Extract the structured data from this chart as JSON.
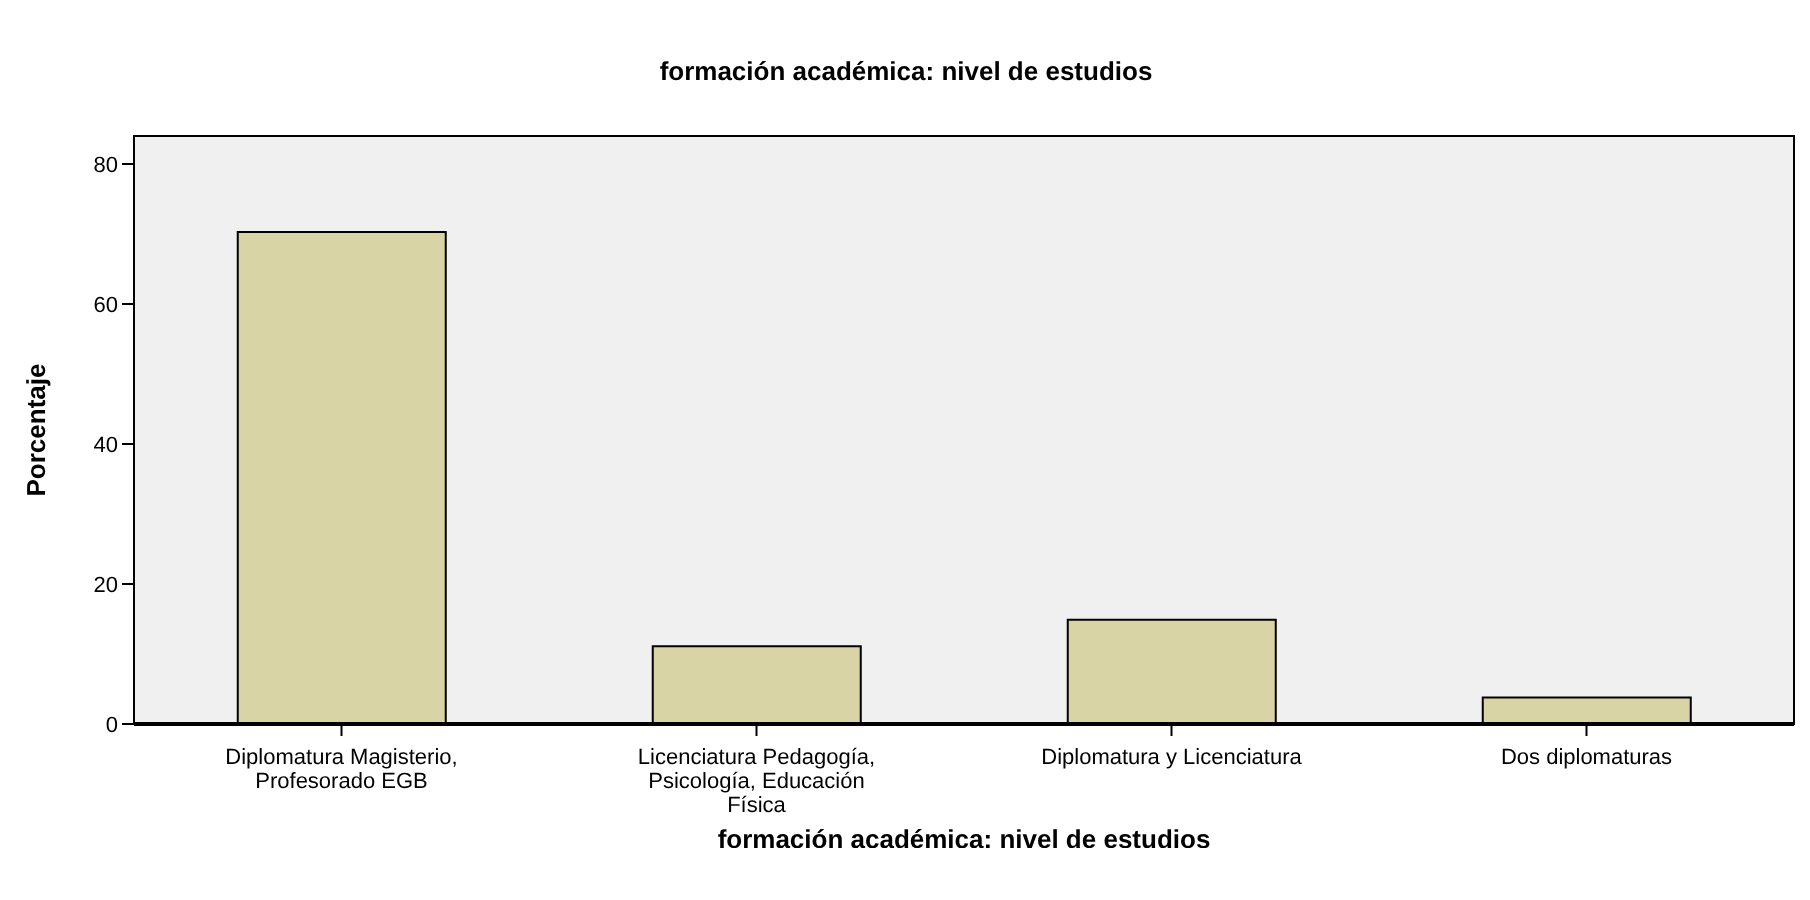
{
  "chart_data": {
    "type": "bar",
    "title": "formación académica: nivel de estudios",
    "xlabel": "formación académica: nivel de estudios",
    "ylabel": "Porcentaje",
    "categories": [
      "Diplomatura Magisterio, Profesorado EGB",
      "Licenciatura Pedagogía, Psicología, Educación Física",
      "Diplomatura y Licenciatura",
      "Dos diplomaturas"
    ],
    "values": [
      70.3,
      11.1,
      14.9,
      3.8
    ],
    "color": "#d9d4a6",
    "ylim": [
      0,
      84
    ],
    "yticks": [
      0,
      20,
      40,
      60,
      80
    ]
  }
}
